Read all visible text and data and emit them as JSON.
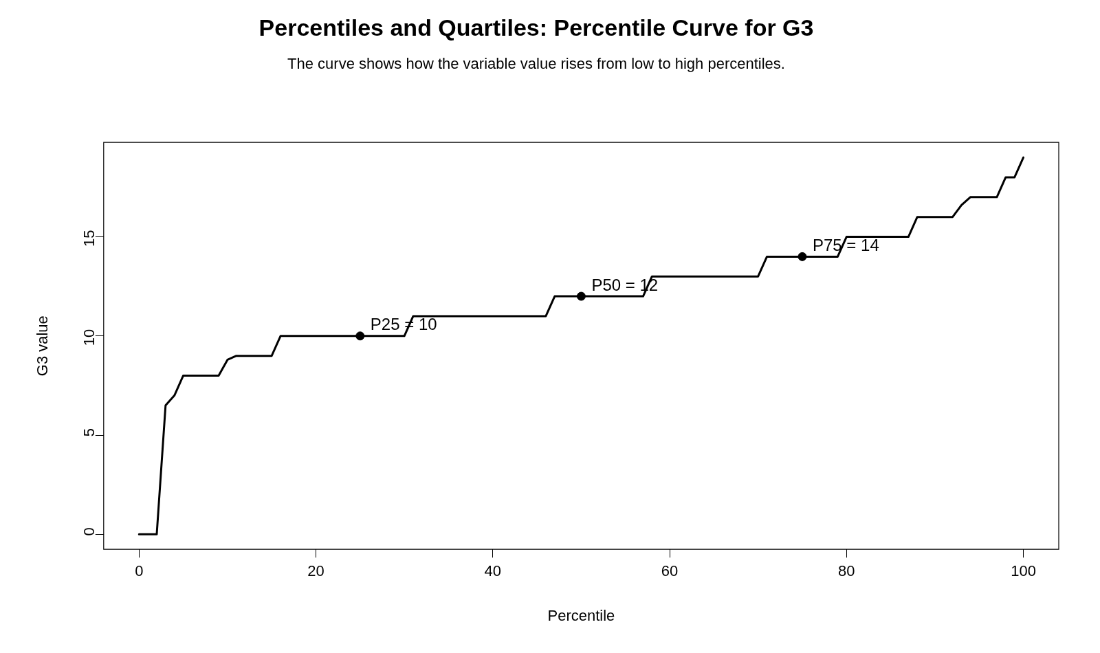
{
  "chart_data": {
    "type": "line",
    "title": "Percentiles and Quartiles: Percentile Curve for G3",
    "subtitle": "The curve shows how the variable value rises from low to high percentiles.",
    "xlabel": "Percentile",
    "ylabel": "G3 value",
    "xlim": [
      -4,
      104
    ],
    "ylim": [
      -0.76,
      19.76
    ],
    "xticks": [
      0,
      20,
      40,
      60,
      80,
      100
    ],
    "yticks": [
      0,
      5,
      10,
      15
    ],
    "grid": false,
    "legend": false,
    "series": [
      {
        "color": "#000000",
        "marker": "none",
        "line_style": "solid",
        "x": [
          0,
          2,
          3,
          4,
          5,
          9,
          10,
          11,
          15,
          16,
          30,
          31,
          46,
          47,
          57,
          58,
          70,
          71,
          79,
          80,
          87,
          88,
          92,
          93,
          94,
          97,
          98,
          99,
          100
        ],
        "values": [
          0,
          0,
          6.5,
          7,
          8,
          8,
          8.8,
          9,
          9,
          10,
          10,
          11,
          11,
          12,
          12,
          13,
          13,
          14,
          14,
          15,
          15,
          16,
          16,
          16.6,
          17,
          17,
          18,
          18,
          19
        ]
      },
      {
        "type": "scatter",
        "color": "#000000",
        "marker": "circle",
        "x": [
          25,
          50,
          75
        ],
        "values": [
          10,
          12,
          14
        ]
      }
    ],
    "annotations": [
      {
        "text": "P25 = 10",
        "x": 25,
        "y": 10
      },
      {
        "text": "P50 = 12",
        "x": 50,
        "y": 12
      },
      {
        "text": "P75 = 14",
        "x": 75,
        "y": 14
      }
    ]
  }
}
